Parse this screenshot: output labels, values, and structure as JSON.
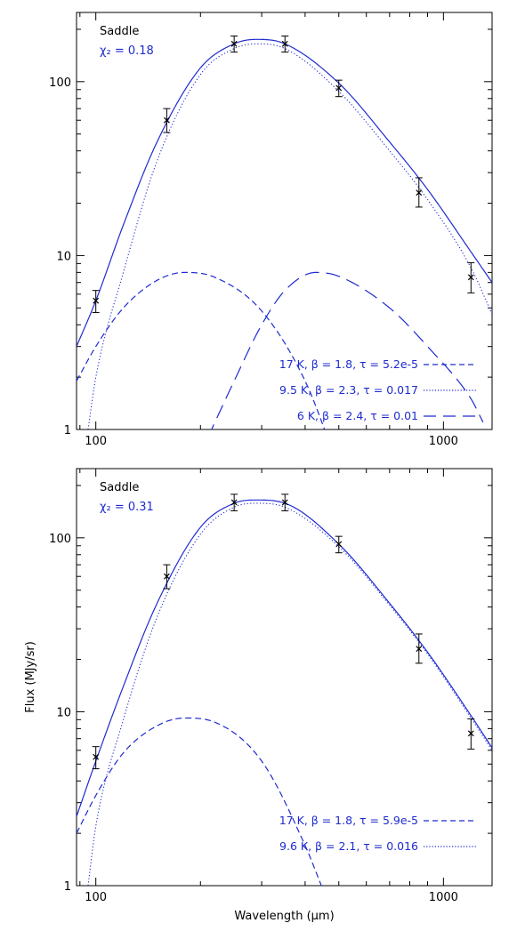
{
  "colors": {
    "model": "#1f2bd0",
    "axes": "#000000",
    "data": "#000000"
  },
  "chart_data": [
    {
      "type": "line",
      "title": "Saddle",
      "fit_label": "χ₂ = 0.18",
      "xlabel": "",
      "ylabel": "",
      "xscale": "log",
      "yscale": "log",
      "xlim": [
        88,
        1380
      ],
      "ylim": [
        1,
        250
      ],
      "x_ticks": [
        100,
        1000
      ],
      "x_tick_labels": [
        "100",
        "1000"
      ],
      "y_ticks": [
        1,
        10,
        100
      ],
      "y_tick_labels": [
        "1",
        "10",
        "100"
      ],
      "observations": {
        "x": [
          100,
          160,
          250,
          350,
          500,
          850,
          1200
        ],
        "y": [
          5.5,
          60,
          165,
          165,
          92,
          23,
          7.5
        ],
        "yerr_low": [
          0.8,
          9,
          17,
          17,
          10,
          4,
          1.4
        ],
        "yerr_high": [
          0.8,
          10,
          18,
          18,
          10,
          5,
          1.6
        ]
      },
      "series": [
        {
          "label": "",
          "style": "solid",
          "peak_x": 290,
          "peak_y": 175,
          "x": [
            88,
            100,
            120,
            150,
            200,
            250,
            290,
            350,
            500,
            700,
            900,
            1200,
            1380
          ],
          "y": [
            3,
            5.5,
            15,
            45,
            120,
            165,
            175,
            165,
            98,
            45,
            24,
            10.5,
            7
          ]
        },
        {
          "label": "17 K, β = 1.8, τ = 5.2e-5",
          "style": "dashed",
          "peak_x": 180,
          "peak_y": 8,
          "x": [
            88,
            100,
            120,
            150,
            180,
            220,
            300,
            400,
            500
          ],
          "y": [
            1.9,
            3,
            5,
            7.2,
            8,
            7.5,
            4.8,
            1.9,
            0.6
          ]
        },
        {
          "label": "9.5 K, β = 2.3, τ = 0.017",
          "style": "dotted",
          "peak_x": 290,
          "peak_y": 165,
          "x": [
            95,
            100,
            120,
            150,
            200,
            250,
            290,
            350,
            500,
            700,
            900,
            1200,
            1380
          ],
          "y": [
            1,
            2,
            8,
            35,
            110,
            155,
            165,
            155,
            88,
            40,
            21,
            8.5,
            4.6
          ]
        },
        {
          "label": "6 K, β = 2.4, τ = 0.01",
          "style": "long-dashed",
          "peak_x": 430,
          "peak_y": 8,
          "x": [
            210,
            250,
            300,
            350,
            430,
            500,
            700,
            900,
            1200,
            1300
          ],
          "y": [
            0.9,
            1.9,
            4,
            6.3,
            8,
            7.6,
            5,
            3,
            1.5,
            1.1
          ]
        }
      ],
      "legend_position": "bottom-right"
    },
    {
      "type": "line",
      "title": "Saddle",
      "fit_label": "χ₂ = 0.31",
      "xlabel": "Wavelength (μm)",
      "ylabel": "Flux (MJy/sr)",
      "xscale": "log",
      "yscale": "log",
      "xlim": [
        88,
        1380
      ],
      "ylim": [
        1,
        250
      ],
      "x_ticks": [
        100,
        1000
      ],
      "x_tick_labels": [
        "100",
        "1000"
      ],
      "y_ticks": [
        1,
        10,
        100
      ],
      "y_tick_labels": [
        "1",
        "10",
        "100"
      ],
      "observations": {
        "x": [
          100,
          160,
          250,
          350,
          500,
          850,
          1200
        ],
        "y": [
          5.5,
          60,
          160,
          160,
          92,
          23,
          7.5
        ],
        "yerr_low": [
          0.8,
          9,
          17,
          17,
          10,
          4,
          1.4
        ],
        "yerr_high": [
          0.8,
          10,
          18,
          18,
          10,
          5,
          1.6
        ]
      },
      "series": [
        {
          "label": "",
          "style": "solid",
          "peak_x": 290,
          "peak_y": 165,
          "x": [
            88,
            100,
            120,
            150,
            200,
            250,
            290,
            350,
            500,
            700,
            900,
            1200,
            1380
          ],
          "y": [
            2.5,
            5.2,
            14,
            42,
            115,
            158,
            165,
            158,
            92,
            42,
            22,
            9.5,
            6.2
          ]
        },
        {
          "label": "17 K, β = 1.8, τ = 5.9e-5",
          "style": "dashed",
          "peak_x": 180,
          "peak_y": 9.2,
          "x": [
            88,
            100,
            120,
            150,
            180,
            220,
            300,
            400,
            450
          ],
          "y": [
            2,
            3.3,
            5.8,
            8.3,
            9.2,
            8.7,
            5.2,
            1.7,
            0.95
          ]
        },
        {
          "label": "9.6 K, β = 2.1, τ = 0.016",
          "style": "dotted",
          "peak_x": 290,
          "peak_y": 158,
          "x": [
            95,
            100,
            120,
            150,
            200,
            250,
            290,
            350,
            500,
            700,
            900,
            1200,
            1380
          ],
          "y": [
            1,
            2.2,
            9,
            35,
            105,
            150,
            158,
            150,
            89,
            41,
            21.5,
            9.2,
            6
          ]
        }
      ],
      "legend_position": "bottom-right"
    }
  ]
}
